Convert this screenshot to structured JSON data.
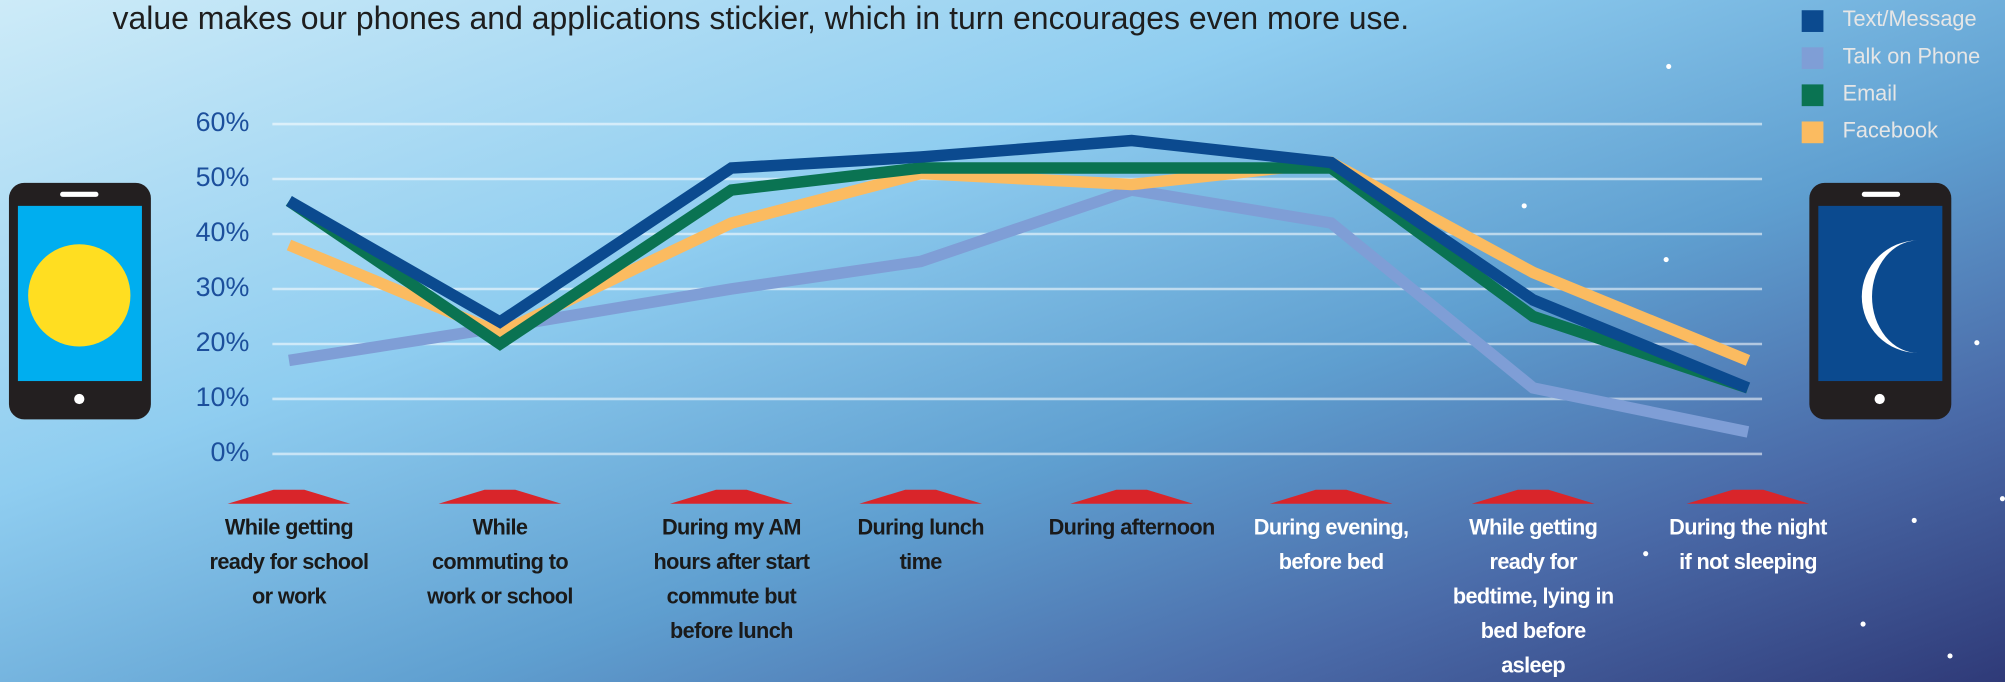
{
  "chart_data": {
    "type": "line",
    "subtitle": "value makes our phones and applications stickier, which in turn encourages even more use.",
    "categories": [
      "While getting ready for school or work",
      "While commuting to work or school",
      "During my AM hours after start commute but before lunch",
      "During lunch time",
      "During afternoon",
      "During evening, before bed",
      "While getting ready for bedtime, lying in bed before asleep",
      "During the night if not sleeping"
    ],
    "series": [
      {
        "name": "Text/Message",
        "color": "#0b4a8f",
        "values": [
          46,
          24,
          52,
          54,
          57,
          53,
          28,
          12
        ]
      },
      {
        "name": "Talk on Phone",
        "color": "#7f9ed6",
        "values": [
          17,
          23,
          30,
          35,
          48,
          42,
          12,
          4
        ]
      },
      {
        "name": "Email",
        "color": "#0a7352",
        "values": [
          46,
          20,
          48,
          52,
          52,
          52,
          25,
          12
        ]
      },
      {
        "name": "Facebook",
        "color": "#fbbb60",
        "values": [
          38,
          22,
          42,
          51,
          49,
          53,
          33,
          17
        ]
      }
    ],
    "ylim": [
      0,
      60
    ],
    "yticks": [
      {
        "value": 0,
        "label": "0%"
      },
      {
        "value": 10,
        "label": "10%"
      },
      {
        "value": 20,
        "label": "20%"
      },
      {
        "value": 30,
        "label": "30%"
      },
      {
        "value": 40,
        "label": "40%"
      },
      {
        "value": 50,
        "label": "50%"
      },
      {
        "value": 60,
        "label": "60%"
      }
    ],
    "grid": true,
    "legend": "top-right"
  }
}
